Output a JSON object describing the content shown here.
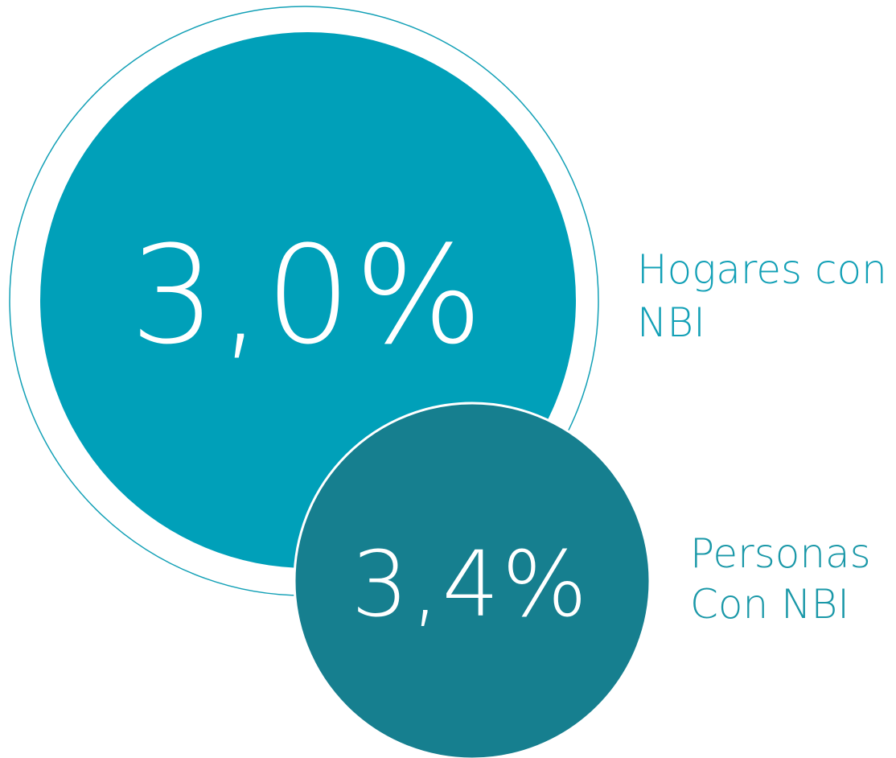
{
  "items": [
    {
      "value": "3,0%",
      "label": [
        "Hogares con",
        "NBI"
      ]
    },
    {
      "value": "3,4%",
      "label": [
        "Personas",
        "Con NBI"
      ]
    }
  ]
}
